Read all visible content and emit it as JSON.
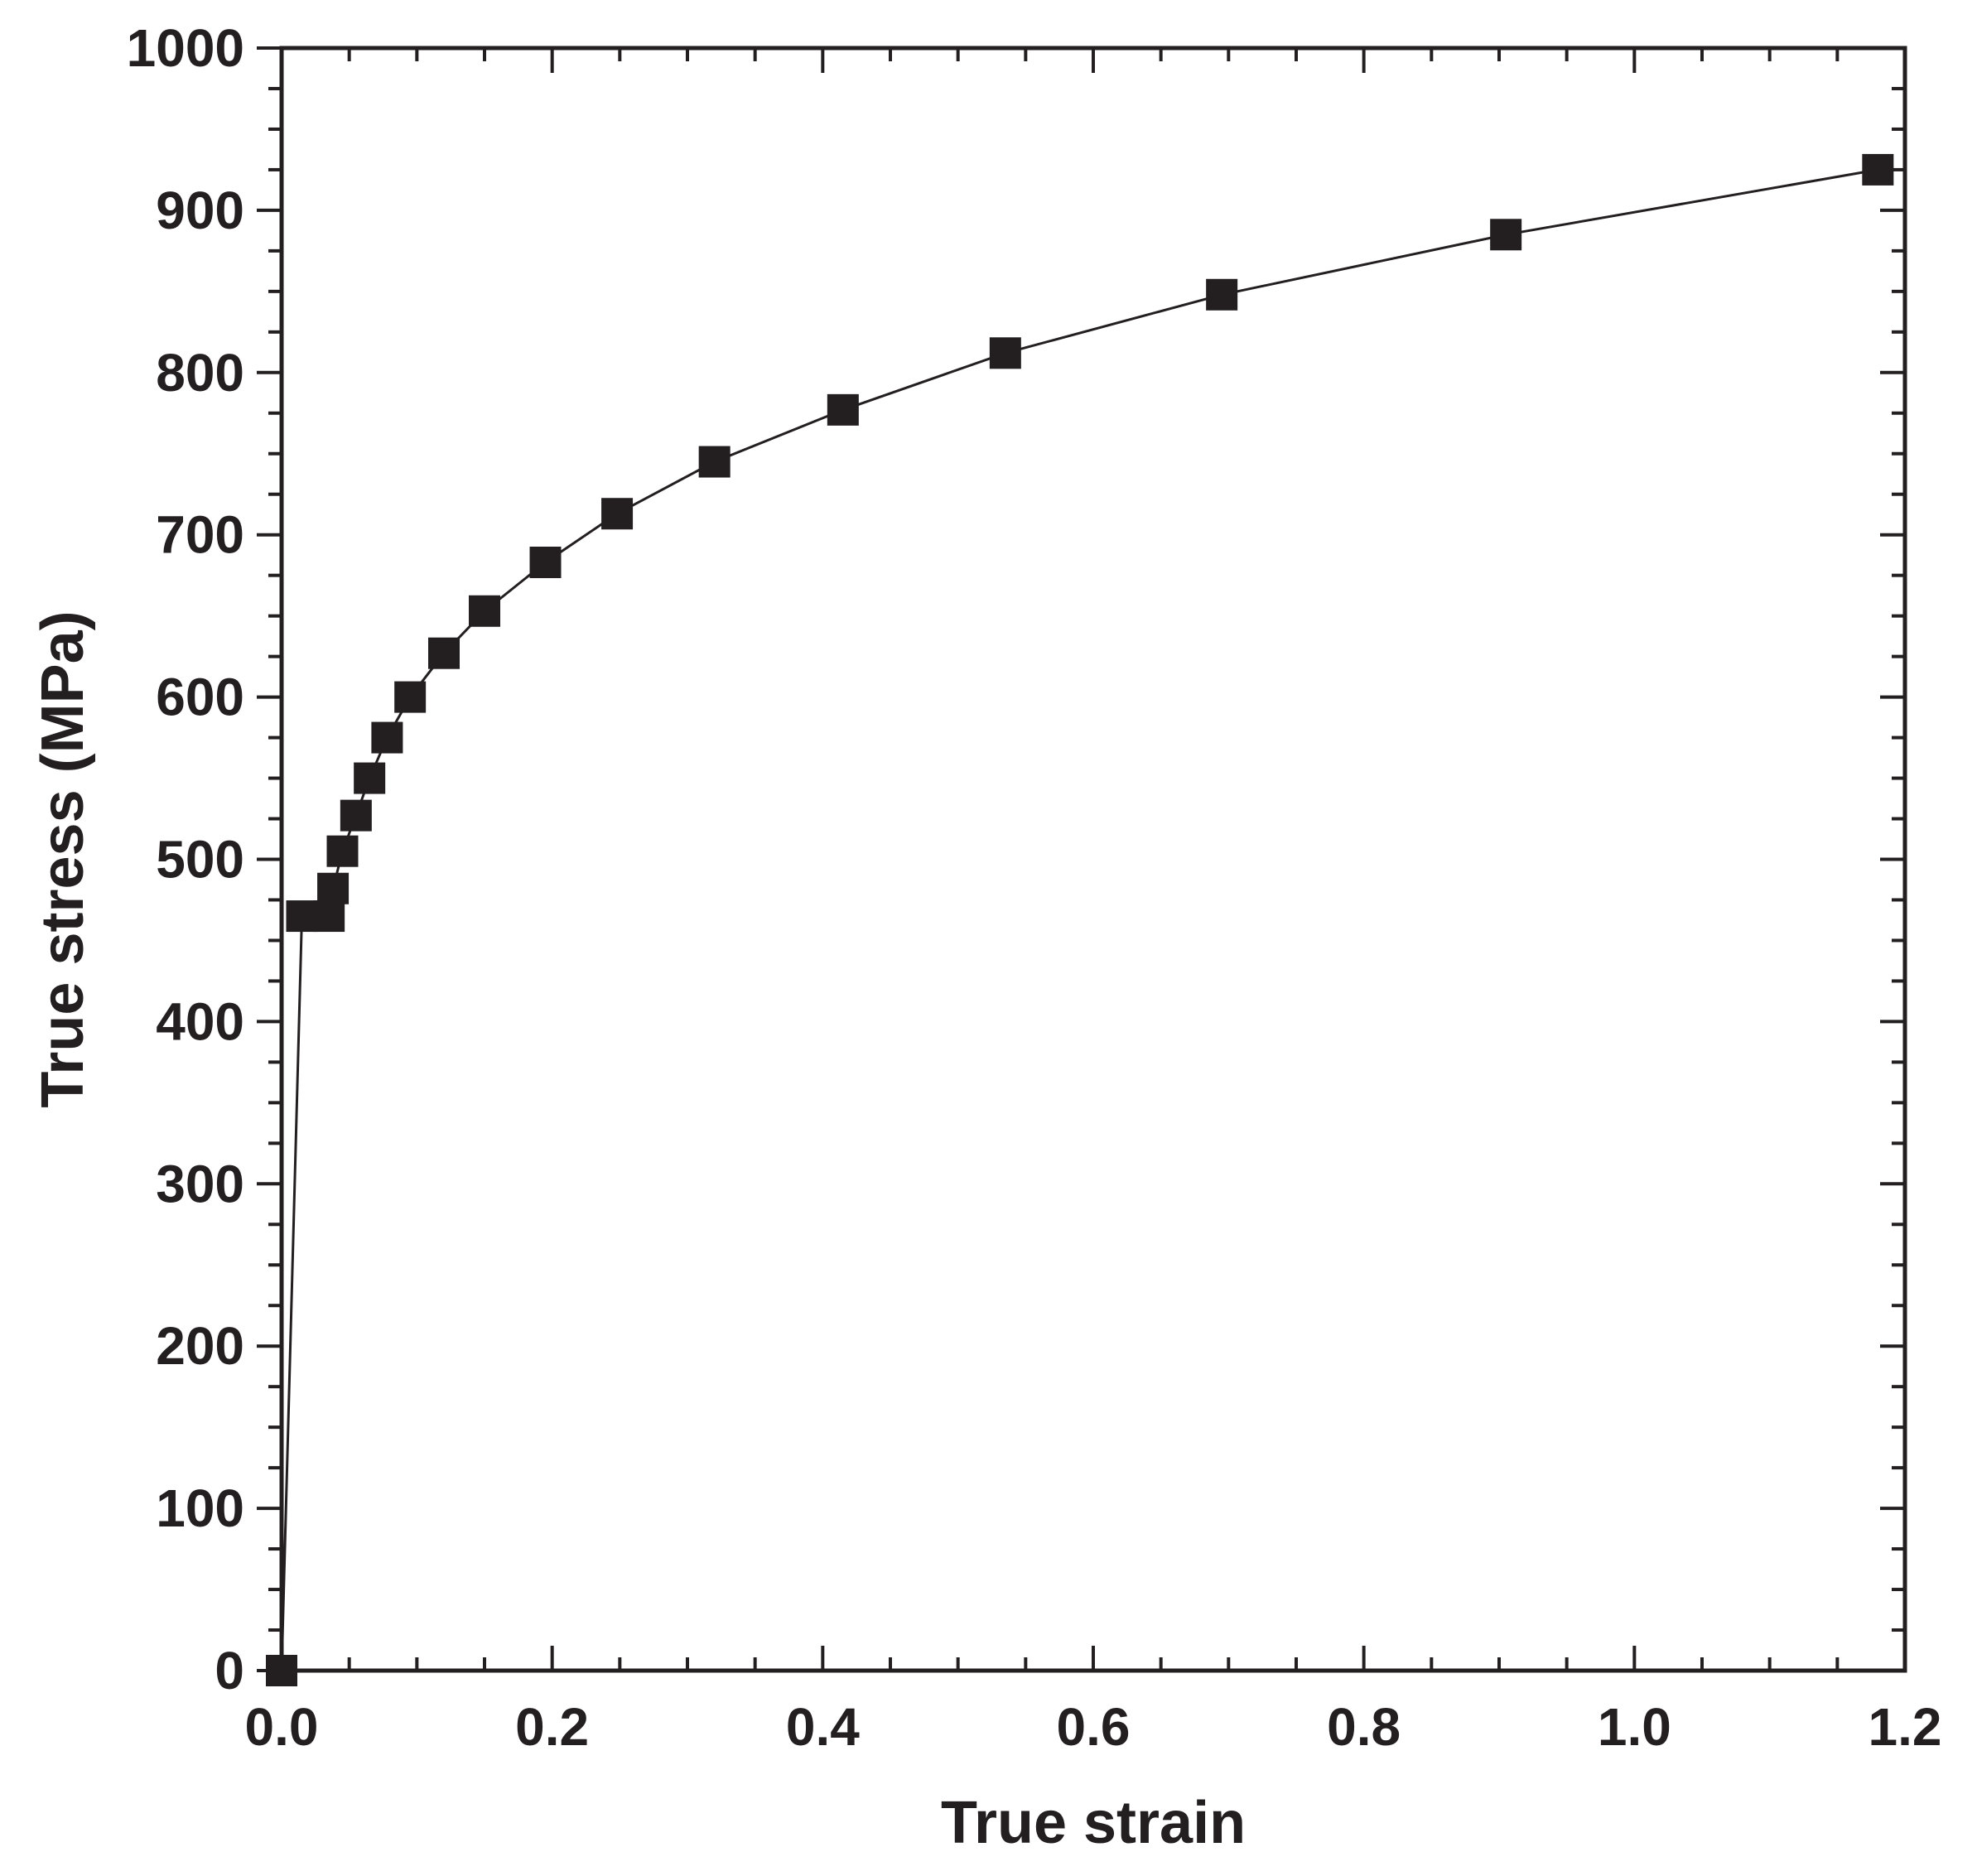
{
  "chart_data": {
    "type": "line",
    "title": "",
    "xlabel": "True strain",
    "ylabel": "True stress (MPa)",
    "xlim": [
      0.0,
      1.2
    ],
    "ylim": [
      0,
      1000
    ],
    "x_ticks": [
      "0.0",
      "0.2",
      "0.4",
      "0.6",
      "0.8",
      "1.0",
      "1.2"
    ],
    "y_ticks": [
      "0",
      "100",
      "200",
      "300",
      "400",
      "500",
      "600",
      "700",
      "800",
      "900",
      "1000"
    ],
    "grid": false,
    "legend": "none",
    "marker": "square",
    "color": "#231f20",
    "series": [
      {
        "x": [
          0.0,
          0.015,
          0.035,
          0.038,
          0.045,
          0.055,
          0.065,
          0.078,
          0.095,
          0.12,
          0.15,
          0.195,
          0.248,
          0.32,
          0.415,
          0.535,
          0.695,
          0.905,
          1.18
        ],
        "y": [
          0,
          465,
          465,
          482,
          505,
          527,
          550,
          575,
          600,
          627,
          653,
          683,
          713,
          745,
          777,
          812,
          848,
          885,
          925
        ]
      }
    ]
  }
}
